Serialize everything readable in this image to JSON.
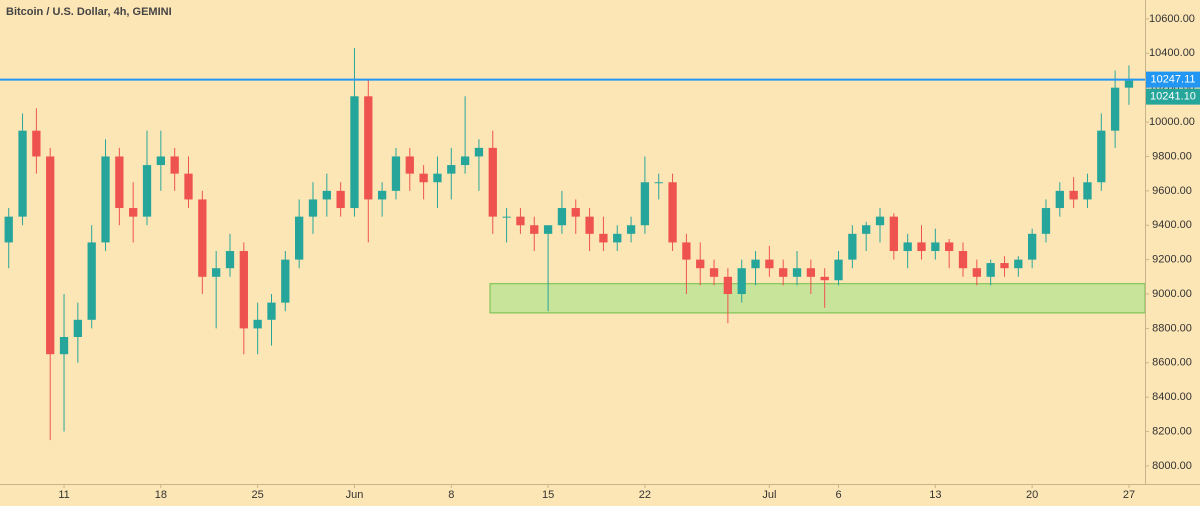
{
  "chart_data": {
    "type": "candlestick",
    "title": "Bitcoin / U.S. Dollar, 4h, GEMINI",
    "x": [
      7,
      8,
      9,
      10,
      11,
      12,
      13,
      14,
      15,
      16,
      17,
      18,
      19,
      20,
      21,
      22,
      23,
      24,
      25,
      26,
      27,
      28,
      29,
      30,
      31,
      32,
      33,
      34,
      35,
      36,
      37,
      38,
      39,
      40,
      41,
      42,
      43,
      44,
      45,
      46,
      47,
      48,
      49,
      50,
      51,
      52,
      53,
      54,
      55,
      56,
      57,
      58,
      59,
      60,
      61,
      62,
      63,
      64,
      65,
      66,
      67,
      68,
      69,
      70,
      71,
      72,
      73,
      74,
      75,
      76,
      77,
      78,
      79,
      80,
      81,
      82,
      83,
      84,
      85,
      86,
      87,
      88
    ],
    "open": [
      9300,
      9450,
      9950,
      9800,
      8650,
      8750,
      8850,
      9300,
      9800,
      9500,
      9450,
      9750,
      9800,
      9700,
      9550,
      9100,
      9150,
      9250,
      8800,
      8850,
      8950,
      9200,
      9450,
      9550,
      9600,
      9500,
      10150,
      9550,
      9600,
      9800,
      9700,
      9650,
      9700,
      9750,
      9800,
      9850,
      9450,
      9450,
      9400,
      9350,
      9400,
      9500,
      9450,
      9350,
      9300,
      9350,
      9400,
      9650,
      9650,
      9300,
      9200,
      9150,
      9100,
      9000,
      9150,
      9200,
      9150,
      9100,
      9150,
      9100,
      9080,
      9200,
      9350,
      9400,
      9450,
      9250,
      9300,
      9250,
      9300,
      9250,
      9150,
      9100,
      9180,
      9150,
      9200,
      9350,
      9500,
      9600,
      9550,
      9650,
      9950,
      10200
    ],
    "high": [
      9500,
      10050,
      10080,
      9850,
      9000,
      8950,
      9400,
      9900,
      9850,
      9650,
      9950,
      9950,
      9850,
      9800,
      9600,
      9250,
      9350,
      9300,
      8950,
      9000,
      9250,
      9550,
      9650,
      9700,
      9650,
      10430,
      10250,
      9650,
      9850,
      9850,
      9750,
      9800,
      9850,
      10150,
      9900,
      9950,
      9500,
      9500,
      9450,
      9400,
      9600,
      9550,
      9500,
      9450,
      9400,
      9450,
      9800,
      9700,
      9700,
      9350,
      9300,
      9200,
      9150,
      9200,
      9250,
      9280,
      9200,
      9250,
      9200,
      9150,
      9250,
      9400,
      9420,
      9500,
      9470,
      9350,
      9400,
      9380,
      9320,
      9300,
      9200,
      9200,
      9220,
      9220,
      9380,
      9550,
      9650,
      9680,
      9700,
      10050,
      10300,
      10330
    ],
    "low": [
      9150,
      9400,
      9700,
      8150,
      8200,
      8600,
      8800,
      9250,
      9400,
      9300,
      9400,
      9600,
      9600,
      9500,
      9000,
      8800,
      9100,
      8650,
      8650,
      8700,
      8900,
      9150,
      9350,
      9450,
      9450,
      9450,
      9300,
      9450,
      9550,
      9600,
      9550,
      9500,
      9550,
      9700,
      9600,
      9350,
      9300,
      9350,
      9250,
      8900,
      9350,
      9350,
      9250,
      9250,
      9250,
      9300,
      9350,
      9550,
      9250,
      9000,
      9050,
      9050,
      8830,
      8950,
      9050,
      9100,
      9050,
      9050,
      9000,
      8920,
      9050,
      9150,
      9250,
      9300,
      9200,
      9150,
      9200,
      9200,
      9150,
      9100,
      9050,
      9050,
      9100,
      9100,
      9150,
      9300,
      9450,
      9500,
      9500,
      9600,
      9850,
      10100
    ],
    "close": [
      9450,
      9950,
      9800,
      8650,
      8750,
      8850,
      9300,
      9800,
      9500,
      9450,
      9750,
      9800,
      9700,
      9550,
      9100,
      9150,
      9250,
      8800,
      8850,
      8950,
      9200,
      9450,
      9550,
      9600,
      9500,
      10150,
      9550,
      9600,
      9800,
      9700,
      9650,
      9700,
      9750,
      9800,
      9850,
      9450,
      9450,
      9400,
      9350,
      9400,
      9500,
      9450,
      9350,
      9300,
      9350,
      9400,
      9650,
      9650,
      9300,
      9200,
      9150,
      9100,
      9000,
      9150,
      9200,
      9150,
      9100,
      9150,
      9100,
      9080,
      9200,
      9350,
      9400,
      9450,
      9250,
      9300,
      9250,
      9300,
      9250,
      9150,
      9100,
      9180,
      9150,
      9200,
      9350,
      9500,
      9600,
      9550,
      9650,
      9950,
      10200,
      10241.1
    ],
    "up_color": "#26a69a",
    "down_color": "#ef5350",
    "xlim": [
      6.37,
      89.16
    ],
    "xticks": [
      11,
      18,
      25,
      {
        "value": 32,
        "label": "Jun"
      },
      {
        "value": 39,
        "label": "8"
      },
      {
        "value": 46,
        "label": "15"
      },
      {
        "value": 53,
        "label": "22"
      },
      {
        "value": 62,
        "label": "Jul"
      },
      {
        "value": 67,
        "label": "6"
      },
      {
        "value": 74,
        "label": "13"
      },
      {
        "value": 81,
        "label": "20"
      },
      {
        "value": 88,
        "label": "27"
      }
    ],
    "ylim": [
      7895,
      10710
    ],
    "yticks": [
      {
        "value": 8000,
        "label": "8000.00"
      },
      {
        "value": 8200,
        "label": "8200.00"
      },
      {
        "value": 8400,
        "label": "8400.00"
      },
      {
        "value": 8600,
        "label": "8600.00"
      },
      {
        "value": 8800,
        "label": "8800.00"
      },
      {
        "value": 9000,
        "label": "9000.00"
      },
      {
        "value": 9200,
        "label": "9200.00"
      },
      {
        "value": 9400,
        "label": "9400.00"
      },
      {
        "value": 9600,
        "label": "9600.00"
      },
      {
        "value": 9800,
        "label": "9800.00"
      },
      {
        "value": 10000,
        "label": "10000.00"
      },
      {
        "value": 10200,
        "label": "10200.00"
      },
      {
        "value": 10400,
        "label": "10400.00"
      },
      {
        "value": 10600,
        "label": "10600.00"
      }
    ],
    "grid": false,
    "resistance_line": {
      "value": 10247.11,
      "label": "10247.11",
      "color": "#2196f3"
    },
    "last_price": {
      "value": 10241.1,
      "label": "10241.10",
      "color": "#26a69a"
    },
    "support_zone": {
      "ylim": [
        8890,
        9060
      ],
      "x_start": 41.8,
      "color": "#c8e49a"
    }
  }
}
